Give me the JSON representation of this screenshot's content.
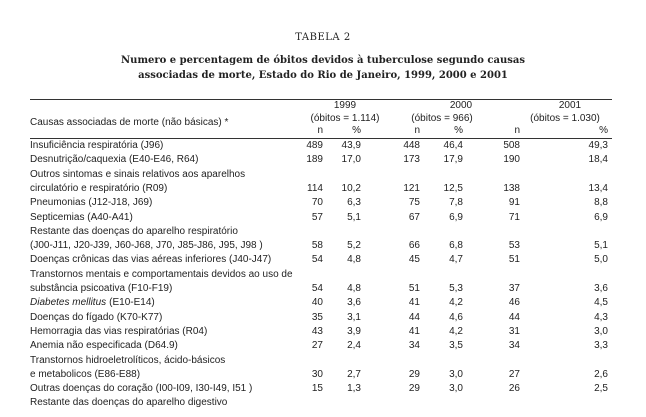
{
  "title": "TABELA 2",
  "subtitle": [
    "Numero e percentagem de óbitos devidos à tuberculose segundo causas",
    "associadas de morte, Estado do Rio de Janeiro, 1999, 2000 e 2001"
  ],
  "table": {
    "header": {
      "cause": "Causas associadas de morte (não básicas) *",
      "years": [
        {
          "year": "1999",
          "obitos": "(óbitos = 1.114)"
        },
        {
          "year": "2000",
          "obitos": "(óbitos = 966)"
        },
        {
          "year": "2001",
          "obitos": "(óbitos = 1.030)"
        }
      ],
      "n": "n",
      "pct": "%"
    },
    "rows": [
      {
        "label": [
          "Insuficiência respiratória (J96)"
        ],
        "values": [
          "489",
          "43,9",
          "448",
          "46,4",
          "508",
          "49,3"
        ]
      },
      {
        "label": [
          "Desnutrição/caquexia (E40-E46, R64)"
        ],
        "values": [
          "189",
          "17,0",
          "173",
          "17,9",
          "190",
          "18,4"
        ]
      },
      {
        "label": [
          "Outros sintomas e sinais relativos aos aparelhos",
          "circulatório e respiratório (R09)"
        ],
        "values": [
          "114",
          "10,2",
          "121",
          "12,5",
          "138",
          "13,4"
        ]
      },
      {
        "label": [
          "Pneumonias (J12-J18, J69)"
        ],
        "values": [
          "70",
          "6,3",
          "75",
          "7,8",
          "91",
          "8,8"
        ]
      },
      {
        "label": [
          "Septicemias (A40-A41)"
        ],
        "values": [
          "57",
          "5,1",
          "67",
          "6,9",
          "71",
          "6,9"
        ]
      },
      {
        "label": [
          "Restante das doenças do aparelho respiratório",
          "(J00-J11, J20-J39, J60-J68, J70, J85-J86, J95, J98 )"
        ],
        "values": [
          "58",
          "5,2",
          "66",
          "6,8",
          "53",
          "5,1"
        ]
      },
      {
        "label": [
          "Doenças crônicas das vias aéreas inferiores (J40-J47)"
        ],
        "values": [
          "54",
          "4,8",
          "45",
          "4,7",
          "51",
          "5,0"
        ]
      },
      {
        "label": [
          "Transtornos mentais e comportamentais devidos ao uso de",
          "substância psicoativa (F10-F19)"
        ],
        "values": [
          "54",
          "4,8",
          "51",
          "5,3",
          "37",
          "3,6"
        ]
      },
      {
        "label": [
          {
            "italic": "Diabetes mellitus",
            "text": "(E10-E14)"
          }
        ],
        "values": [
          "40",
          "3,6",
          "41",
          "4,2",
          "46",
          "4,5"
        ]
      },
      {
        "label": [
          "Doenças do fígado (K70-K77)"
        ],
        "values": [
          "35",
          "3,1",
          "44",
          "4,6",
          "44",
          "4,3"
        ]
      },
      {
        "label": [
          "Hemorragia das vias respiratórias (R04)"
        ],
        "values": [
          "43",
          "3,9",
          "41",
          "4,2",
          "31",
          "3,0"
        ]
      },
      {
        "label": [
          "Anemia não especificada (D64.9)"
        ],
        "values": [
          "27",
          "2,4",
          "34",
          "3,5",
          "34",
          "3,3"
        ]
      },
      {
        "label": [
          "Transtornos hidroeletrolíticos, ácido-básicos",
          "e metabolicos (E86-E88)"
        ],
        "values": [
          "30",
          "2,7",
          "29",
          "3,0",
          "27",
          "2,6"
        ]
      },
      {
        "label": [
          "Outras doenças do coração (I00-I09, I30-I49, I51 )"
        ],
        "values": [
          "15",
          "1,3",
          "29",
          "3,0",
          "26",
          "2,5"
        ]
      },
      {
        "label": [
          "Restante das doenças do aparelho digestivo"
        ]
      }
    ]
  }
}
